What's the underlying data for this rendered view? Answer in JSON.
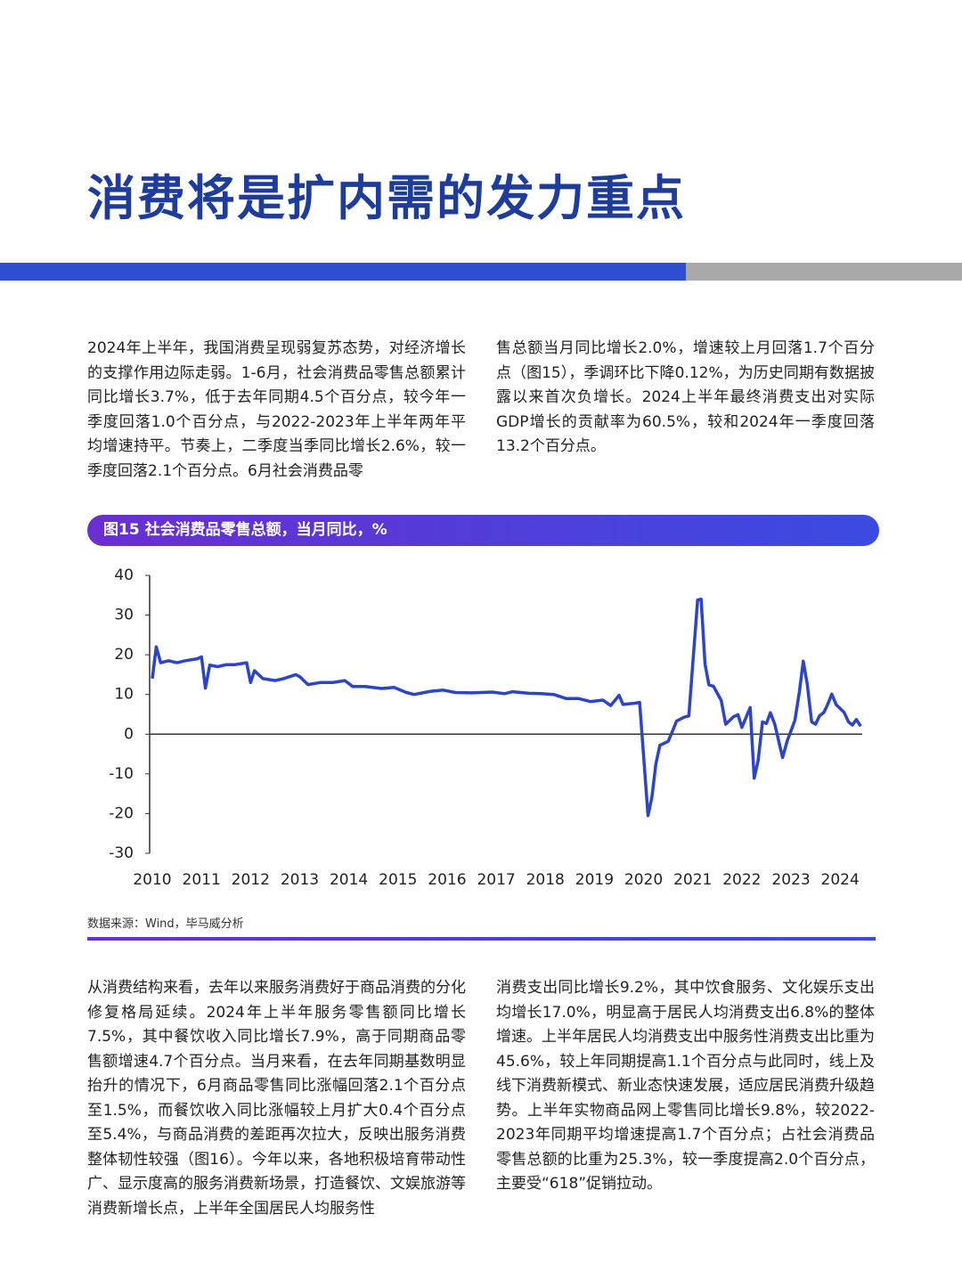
{
  "header": {
    "title": "消费将是扩内需的发力重点"
  },
  "intro": {
    "left": "2024年上半年，我国消费呈现弱复苏态势，对经济增长的支撑作用边际走弱。1-6月，社会消费品零售总额累计同比增长3.7%，低于去年同期4.5个百分点，较今年一季度回落1.0个百分点，与2022-2023年上半年两年平均增速持平。节奏上，二季度当季同比增长2.6%，较一季度回落2.1个百分点。6月社会消费品零",
    "right": "售总额当月同比增长2.0%，增速较上月回落1.7个百分点（图15），季调环比下降0.12%，为历史同期有数据披露以来首次负增长。2024上半年最终消费支出对实际GDP增长的贡献率为60.5%，较和2024年一季度回落13.2个百分点。"
  },
  "chart_data": {
    "type": "line",
    "title": "图15 社会消费品零售总额，当月同比，%",
    "source": "数据来源：Wind，毕马威分析",
    "color": "#2b44c8",
    "x": [
      2010.0,
      2010.08,
      2010.17,
      2010.33,
      2010.5,
      2010.67,
      2010.92,
      2011.0,
      2011.08,
      2011.17,
      2011.33,
      2011.5,
      2011.67,
      2011.92,
      2012.0,
      2012.08,
      2012.25,
      2012.5,
      2012.67,
      2012.92,
      2013.0,
      2013.17,
      2013.42,
      2013.67,
      2013.92,
      2014.08,
      2014.33,
      2014.67,
      2014.92,
      2015.17,
      2015.33,
      2015.67,
      2015.92,
      2016.17,
      2016.5,
      2016.92,
      2017.17,
      2017.33,
      2017.67,
      2017.92,
      2018.17,
      2018.42,
      2018.67,
      2018.92,
      2019.17,
      2019.33,
      2019.5,
      2019.58,
      2019.83,
      2019.92,
      2020.09,
      2020.17,
      2020.25,
      2020.33,
      2020.5,
      2020.58,
      2020.67,
      2020.83,
      2020.92,
      2021.1,
      2021.17,
      2021.25,
      2021.33,
      2021.42,
      2021.58,
      2021.67,
      2021.83,
      2021.92,
      2022.0,
      2022.17,
      2022.25,
      2022.33,
      2022.42,
      2022.5,
      2022.58,
      2022.67,
      2022.83,
      2022.92,
      2023.08,
      2023.17,
      2023.25,
      2023.33,
      2023.42,
      2023.5,
      2023.58,
      2023.67,
      2023.75,
      2023.83,
      2023.92,
      2024.08,
      2024.17,
      2024.25,
      2024.33,
      2024.42
    ],
    "values": [
      14,
      22,
      18,
      18.5,
      18,
      18.5,
      19,
      19.5,
      11.6,
      17.4,
      17,
      17.5,
      17.5,
      18,
      13,
      16,
      14,
      13.5,
      14,
      15,
      14.5,
      12.5,
      13,
      13,
      13.5,
      12,
      12,
      11.5,
      11.8,
      10.5,
      10,
      10.8,
      11.1,
      10.5,
      10.4,
      10.6,
      10.2,
      10.7,
      10.3,
      10.2,
      10,
      9,
      9,
      8.2,
      8.6,
      7.2,
      9.8,
      7.5,
      7.8,
      8,
      -20.5,
      -15.8,
      -7.5,
      -2.8,
      -1.8,
      0.5,
      3.3,
      4.3,
      4.6,
      33.8,
      34,
      17.7,
      12.4,
      12.1,
      8.5,
      2.5,
      4.4,
      4.9,
      1.7,
      6.7,
      -11.1,
      -6.7,
      3.1,
      2.7,
      5.4,
      2.5,
      -5.9,
      -1.8,
      3.5,
      10.6,
      18.4,
      12.7,
      3.1,
      2.5,
      4.6,
      5.5,
      7.6,
      10.1,
      7.4,
      5.5,
      3.1,
      2.3,
      3.7,
      2.0
    ],
    "xlim": [
      2010,
      2024.45
    ],
    "xticks": [
      2010,
      2011,
      2012,
      2013,
      2014,
      2015,
      2016,
      2017,
      2018,
      2019,
      2020,
      2021,
      2022,
      2023,
      2024
    ],
    "ylim": [
      -30,
      40
    ],
    "yticks": [
      -30,
      -20,
      -10,
      0,
      10,
      20,
      30,
      40
    ],
    "grid": false
  },
  "body": {
    "left": "从消费结构来看，去年以来服务消费好于商品消费的分化修复格局延续。2024年上半年服务零售额同比增长7.5%，其中餐饮收入同比增长7.9%，高于同期商品零售额增速4.7个百分点。当月来看，在去年同期基数明显抬升的情况下，6月商品零售同比涨幅回落2.1个百分点至1.5%，而餐饮收入同比涨幅较上月扩大0.4个百分点至5.4%，与商品消费的差距再次拉大，反映出服务消费整体韧性较强（图16）。今年以来，各地积极培育带动性广、显示度高的服务消费新场景，打造餐饮、文娱旅游等消费新增长点，上半年全国居民人均服务性",
    "right": "消费支出同比增长9.2%，其中饮食服务、文化娱乐支出均增长17.0%，明显高于居民人均消费支出6.8%的整体增速。上半年居民人均消费支出中服务性消费支出比重为45.6%，较上年同期提高1.1个百分点与此同时，线上及线下消费新模式、新业态快速发展，适应居民消费升级趋势。上半年实物商品网上零售同比增长9.8%，较2022-2023年同期平均增速提高1.7个百分点；占社会消费品零售总额的比重为25.3%，较一季度提高2.0个百分点，主要受“618”促销拉动。"
  }
}
